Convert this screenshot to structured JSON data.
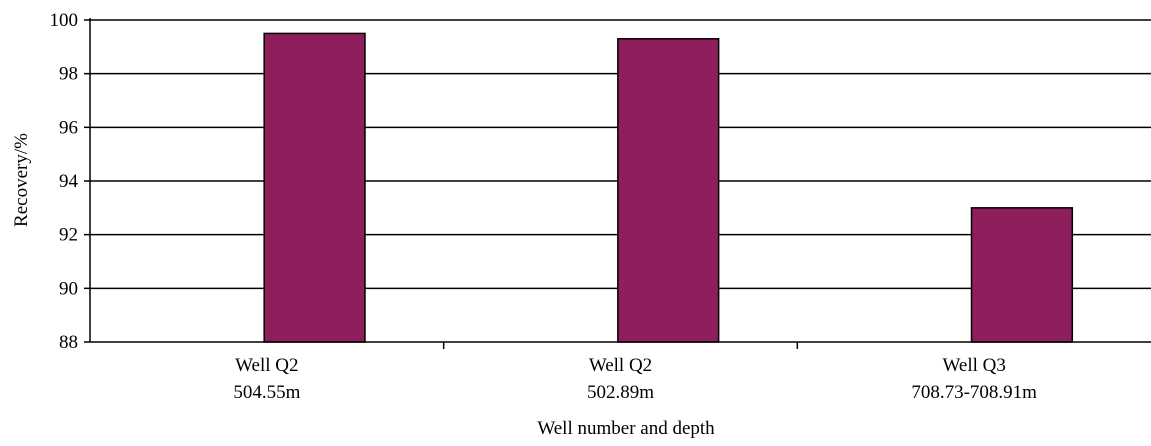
{
  "chart_data": {
    "type": "bar",
    "categories": [
      {
        "line1": "Well Q2",
        "line2": "504.55m"
      },
      {
        "line1": "Well Q2",
        "line2": "502.89m"
      },
      {
        "line1": "Well Q3",
        "line2": "708.73-708.91m"
      }
    ],
    "values": [
      99.5,
      99.3,
      93.0
    ],
    "xlabel": "Well number and depth",
    "ylabel": "Recovery/%",
    "ylim": [
      88,
      100
    ],
    "yticks": [
      88,
      90,
      92,
      94,
      96,
      98,
      100
    ],
    "grid": true,
    "bar_color": "#8e1e5c",
    "legend": "none"
  }
}
